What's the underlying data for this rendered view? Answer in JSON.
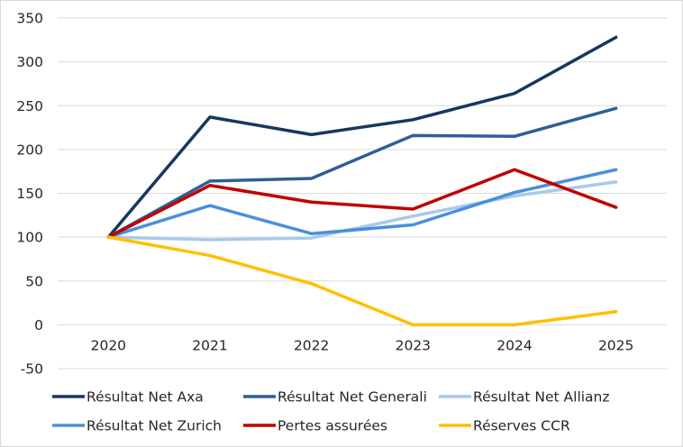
{
  "chart_data": {
    "type": "line",
    "title": "",
    "xlabel": "",
    "ylabel": "",
    "categories": [
      "2020",
      "2021",
      "2022",
      "2023",
      "2024",
      "2025"
    ],
    "ylim": [
      -50,
      350
    ],
    "yticks": [
      -50,
      0,
      50,
      100,
      150,
      200,
      250,
      300,
      350
    ],
    "grid": "horizontal",
    "legend_position": "bottom",
    "series": [
      {
        "name": "Résultat Net Axa",
        "color": "#17375e",
        "values": [
          100,
          237,
          217,
          234,
          264,
          328
        ]
      },
      {
        "name": "Résultat Net Generali",
        "color": "#2e5f97",
        "values": [
          100,
          164,
          167,
          216,
          215,
          247
        ]
      },
      {
        "name": "Résultat Net Allianz",
        "color": "#a9c9ea",
        "values": [
          100,
          97,
          99,
          124,
          147,
          163
        ]
      },
      {
        "name": "Résultat Net Zurich",
        "color": "#4a8fdc",
        "values": [
          100,
          136,
          104,
          114,
          151,
          177
        ]
      },
      {
        "name": "Pertes assurées",
        "color": "#c00000",
        "values": [
          100,
          159,
          140,
          132,
          177,
          134
        ]
      },
      {
        "name": "Réserves CCR",
        "color": "#ffc000",
        "values": [
          100,
          79,
          47,
          0,
          0,
          15
        ]
      }
    ]
  }
}
